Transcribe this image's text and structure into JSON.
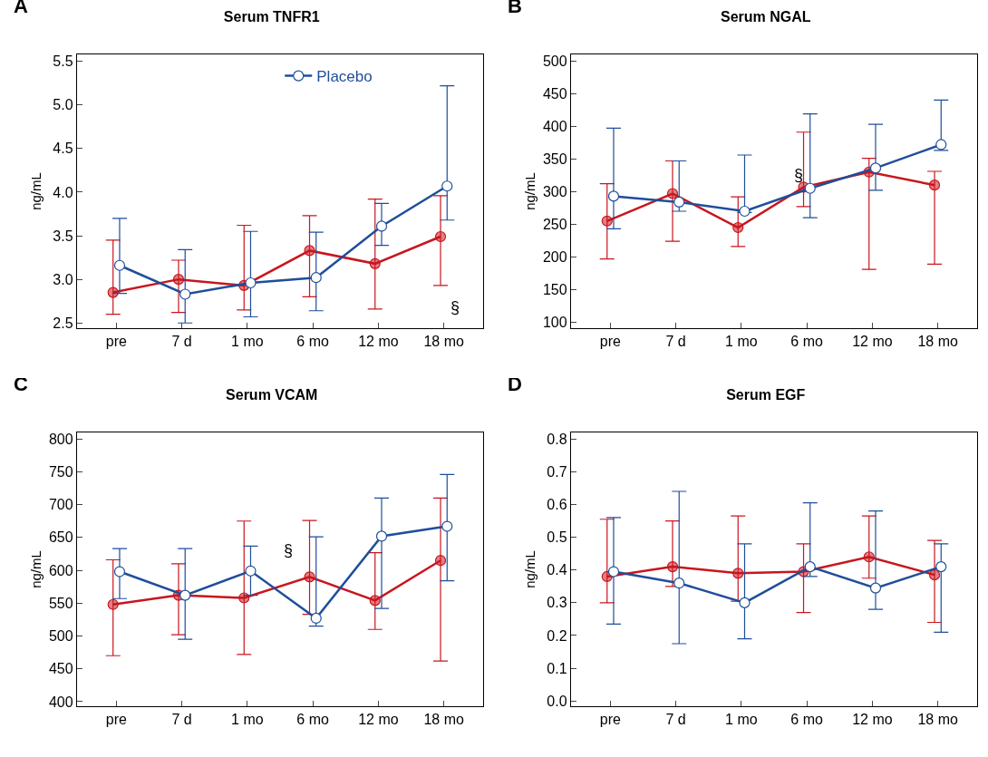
{
  "chart_data": [
    {
      "type": "line",
      "title": "Serum TNFR1",
      "ylabel": "ng/mL",
      "annotations": [
        "A",
        "§"
      ],
      "categories": [
        "pre",
        "7 d",
        "1 mo",
        "6 mo",
        "12 mo",
        "18 mo"
      ],
      "ylim": [
        2.44,
        5.58
      ],
      "yticks": [
        2.5,
        {
          "value": 3,
          "label": "3.0"
        },
        3.5,
        {
          "value": 4,
          "label": "4.0"
        },
        4.5,
        {
          "value": 5,
          "label": "5.0"
        },
        5.5
      ],
      "grid": false,
      "legend": "top",
      "marker": "circle",
      "line_style": "solid",
      "series": [
        {
          "color": "#c8161e",
          "values": [
            2.85,
            3.0,
            2.93,
            3.33,
            3.18,
            3.49
          ],
          "errors": [
            [
              2.6,
              3.45
            ],
            [
              2.62,
              3.22
            ],
            [
              2.65,
              3.62
            ],
            [
              2.8,
              3.73
            ],
            [
              2.66,
              3.92
            ],
            [
              2.93,
              3.96
            ]
          ]
        },
        {
          "name": "Placebo",
          "color": "#1f4e9a",
          "values": [
            3.16,
            2.83,
            2.96,
            3.02,
            3.61,
            4.07
          ],
          "errors": [
            [
              2.84,
              3.7
            ],
            [
              2.5,
              3.34
            ],
            [
              2.57,
              3.55
            ],
            [
              2.64,
              3.54
            ],
            [
              3.39,
              3.87
            ],
            [
              3.68,
              5.22
            ]
          ]
        }
      ]
    },
    {
      "type": "line",
      "title": "Serum NGAL",
      "ylabel": "ng/mL",
      "annotations": [
        "B",
        "§"
      ],
      "categories": [
        "pre",
        "7 d",
        "1 mo",
        "6 mo",
        "12 mo",
        "18 mo"
      ],
      "ylim": [
        91,
        510
      ],
      "yticks": [
        100,
        150,
        200,
        250,
        300,
        350,
        400,
        450,
        500
      ],
      "grid": false,
      "marker": "circle",
      "line_style": "solid",
      "series": [
        {
          "color": "#c8161e",
          "values": [
            255,
            297,
            245,
            307,
            330,
            310
          ],
          "errors": [
            [
              197,
              312
            ],
            [
              224,
              347
            ],
            [
              216,
              292
            ],
            [
              277,
              391
            ],
            [
              181,
              351
            ],
            [
              189,
              331
            ]
          ]
        },
        {
          "color": "#1f4e9a",
          "values": [
            293,
            284,
            270,
            305,
            336,
            372
          ],
          "errors": [
            [
              243,
              397
            ],
            [
              270,
              347
            ],
            [
              268,
              356
            ],
            [
              260,
              419
            ],
            [
              302,
              403
            ],
            [
              363,
              440
            ]
          ]
        }
      ]
    },
    {
      "type": "line",
      "title": "Serum VCAM",
      "ylabel": "ng/mL",
      "annotations": [
        "C",
        "§"
      ],
      "categories": [
        "pre",
        "7 d",
        "1 mo",
        "6 mo",
        "12 mo",
        "18 mo"
      ],
      "ylim": [
        393,
        810
      ],
      "yticks": [
        400,
        450,
        500,
        550,
        600,
        650,
        700,
        750,
        800
      ],
      "grid": false,
      "marker": "circle",
      "line_style": "solid",
      "series": [
        {
          "color": "#c8161e",
          "values": [
            548,
            562,
            558,
            590,
            554,
            615
          ],
          "errors": [
            [
              470,
              616
            ],
            [
              502,
              610
            ],
            [
              472,
              675
            ],
            [
              533,
              676
            ],
            [
              510,
              627
            ],
            [
              462,
              710
            ]
          ]
        },
        {
          "color": "#1f4e9a",
          "values": [
            598,
            562,
            599,
            527,
            652,
            667
          ],
          "errors": [
            [
              557,
              633
            ],
            [
              495,
              633
            ],
            [
              562,
              637
            ],
            [
              515,
              651
            ],
            [
              542,
              710
            ],
            [
              584,
              746
            ]
          ]
        }
      ]
    },
    {
      "type": "line",
      "title": "Serum EGF",
      "ylabel": "ng/mL",
      "annotations": [
        "D"
      ],
      "categories": [
        "pre",
        "7 d",
        "1 mo",
        "6 mo",
        "12 mo",
        "18 mo"
      ],
      "ylim": [
        -0.016,
        0.82
      ],
      "yticks": [
        {
          "value": 0,
          "label": "0.0"
        },
        0.1,
        0.2,
        0.3,
        0.4,
        0.5,
        0.6,
        0.7,
        0.8
      ],
      "grid": false,
      "marker": "circle",
      "line_style": "solid",
      "series": [
        {
          "color": "#c8161e",
          "values": [
            0.38,
            0.41,
            0.39,
            0.395,
            0.44,
            0.385
          ],
          "errors": [
            [
              0.3,
              0.555
            ],
            [
              0.35,
              0.55
            ],
            [
              0.305,
              0.565
            ],
            [
              0.27,
              0.48
            ],
            [
              0.375,
              0.565
            ],
            [
              0.24,
              0.49
            ]
          ]
        },
        {
          "color": "#1f4e9a",
          "values": [
            0.395,
            0.36,
            0.3,
            0.41,
            0.345,
            0.41
          ],
          "errors": [
            [
              0.235,
              0.56
            ],
            [
              0.175,
              0.64
            ],
            [
              0.19,
              0.48
            ],
            [
              0.38,
              0.605
            ],
            [
              0.28,
              0.58
            ],
            [
              0.21,
              0.48
            ]
          ]
        }
      ]
    }
  ]
}
